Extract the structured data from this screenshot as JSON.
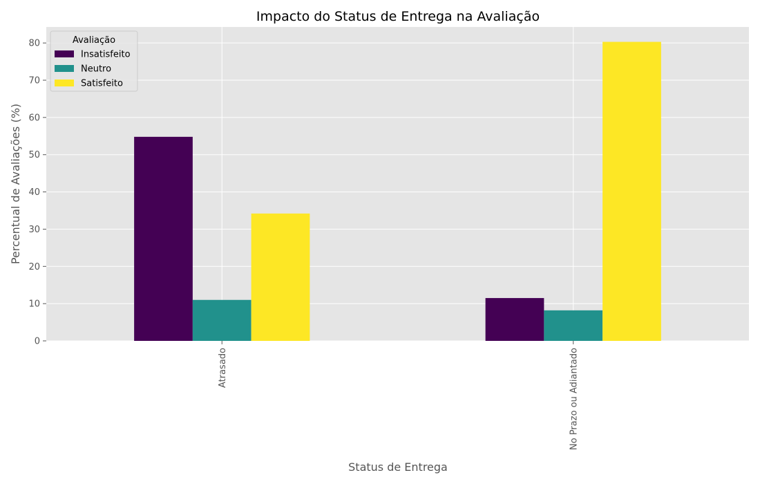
{
  "chart_data": {
    "type": "bar",
    "title": "Impacto do Status de Entrega na Avaliação",
    "xlabel": "Status de Entrega",
    "ylabel": "Percentual de Avaliações (%)",
    "categories": [
      "Atrasado",
      "No Prazo ou Adiantado"
    ],
    "series": [
      {
        "name": "Insatisfeito",
        "values": [
          54.8,
          11.5
        ],
        "color": "#440154"
      },
      {
        "name": "Neutro",
        "values": [
          11.0,
          8.2
        ],
        "color": "#21918c"
      },
      {
        "name": "Satisfeito",
        "values": [
          34.2,
          80.3
        ],
        "color": "#fde725"
      }
    ],
    "legend_title": "Avaliação",
    "legend_position": "top-left",
    "ylim": [
      0,
      84.3
    ],
    "yticks": [
      0,
      10,
      20,
      30,
      40,
      50,
      60,
      70,
      80
    ],
    "grid": true,
    "style": "ggplot",
    "background_color": "#e5e5e5"
  }
}
